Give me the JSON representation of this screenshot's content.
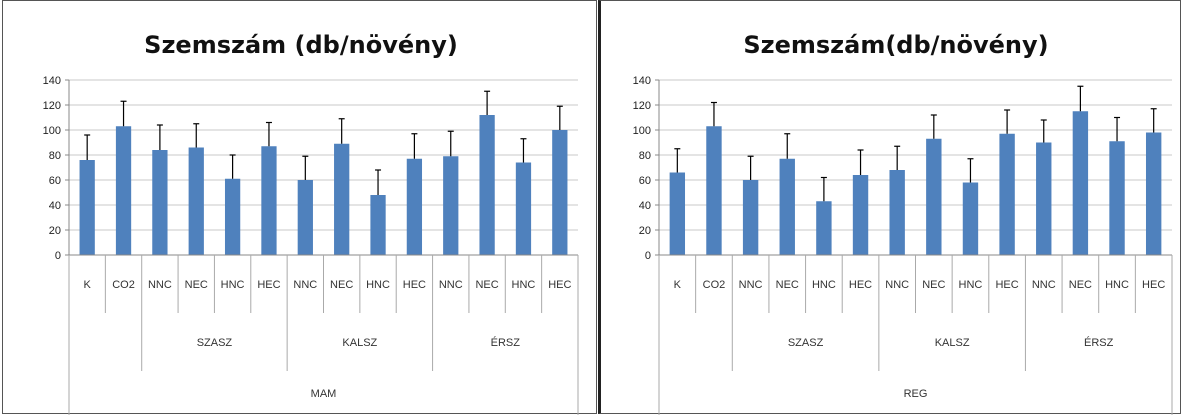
{
  "chart_data": [
    {
      "type": "bar",
      "title": "Szemszám (db/növény)",
      "ylim": [
        0,
        140
      ],
      "yticks": [
        0,
        20,
        40,
        60,
        80,
        100,
        120,
        140
      ],
      "grid": true,
      "legend": "none",
      "color": "#4f81bd",
      "categories": [
        "K",
        "CO2",
        "NNC",
        "NEC",
        "HNC",
        "HEC",
        "NNC",
        "NEC",
        "HNC",
        "HEC",
        "NNC",
        "NEC",
        "HNC",
        "HEC"
      ],
      "groups": [
        {
          "label": "SZASZ",
          "start": 2,
          "end": 5
        },
        {
          "label": "KALSZ",
          "start": 6,
          "end": 9
        },
        {
          "label": "ÉRSZ",
          "start": 10,
          "end": 13
        }
      ],
      "outer_group": "MAM",
      "values": [
        76,
        103,
        84,
        86,
        61,
        87,
        60,
        89,
        48,
        77,
        79,
        112,
        74,
        100
      ],
      "err_upper": [
        96,
        123,
        104,
        105,
        80,
        106,
        79,
        109,
        68,
        97,
        99,
        131,
        93,
        119
      ]
    },
    {
      "type": "bar",
      "title": "Szemszám(db/növény)",
      "ylim": [
        0,
        140
      ],
      "yticks": [
        0,
        20,
        40,
        60,
        80,
        100,
        120,
        140
      ],
      "grid": true,
      "legend": "none",
      "color": "#4f81bd",
      "categories": [
        "K",
        "CO2",
        "NNC",
        "NEC",
        "HNC",
        "HEC",
        "NNC",
        "NEC",
        "HNC",
        "HEC",
        "NNC",
        "NEC",
        "HNC",
        "HEC"
      ],
      "groups": [
        {
          "label": "SZASZ",
          "start": 2,
          "end": 5
        },
        {
          "label": "KALSZ",
          "start": 6,
          "end": 9
        },
        {
          "label": "ÉRSZ",
          "start": 10,
          "end": 13
        }
      ],
      "outer_group": "REG",
      "values": [
        66,
        103,
        60,
        77,
        43,
        64,
        68,
        93,
        58,
        97,
        90,
        115,
        91,
        98
      ],
      "err_upper": [
        85,
        122,
        79,
        97,
        62,
        84,
        87,
        112,
        77,
        116,
        108,
        135,
        110,
        117
      ]
    }
  ]
}
